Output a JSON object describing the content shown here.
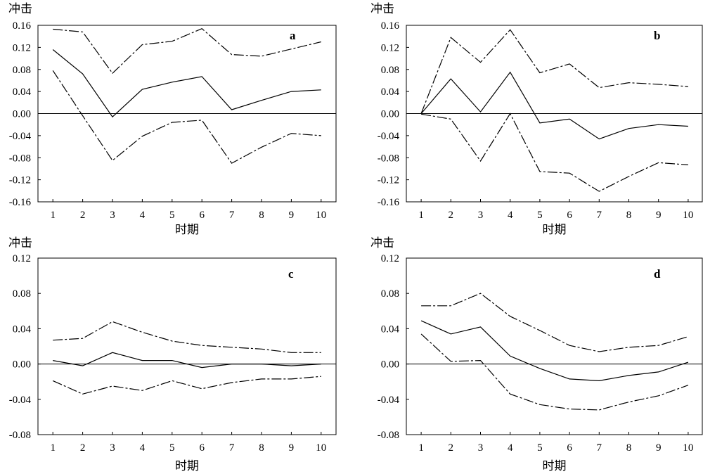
{
  "chart_data": [
    {
      "type": "line",
      "label": "a",
      "ylabel": "冲击",
      "xlabel": "时期",
      "x": [
        1,
        2,
        3,
        4,
        5,
        6,
        7,
        8,
        9,
        10
      ],
      "ylim": [
        -0.16,
        0.16
      ],
      "yticks": [
        "0.16",
        "0.12",
        "0.08",
        "0.04",
        "0.00",
        "-0.04",
        "-0.08",
        "-0.12",
        "-0.16"
      ],
      "grid": false,
      "series": [
        {
          "style": "solid",
          "values": [
            0.116,
            0.072,
            -0.006,
            0.044,
            0.057,
            0.067,
            0.007,
            0.024,
            0.04,
            0.043
          ]
        },
        {
          "style": "dash-dot-upper",
          "values": [
            0.153,
            0.148,
            0.073,
            0.125,
            0.131,
            0.154,
            0.107,
            0.104,
            0.117,
            0.13
          ]
        },
        {
          "style": "dash-dot-lower",
          "values": [
            0.078,
            -0.004,
            -0.085,
            -0.041,
            -0.016,
            -0.012,
            -0.09,
            -0.061,
            -0.036,
            -0.04
          ]
        }
      ]
    },
    {
      "type": "line",
      "label": "b",
      "ylabel": "冲击",
      "xlabel": "时期",
      "x": [
        1,
        2,
        3,
        4,
        5,
        6,
        7,
        8,
        9,
        10
      ],
      "ylim": [
        -0.16,
        0.16
      ],
      "yticks": [
        "0.16",
        "0.12",
        "0.08",
        "0.04",
        "0.00",
        "-0.04",
        "-0.08",
        "-0.12",
        "-0.16"
      ],
      "grid": false,
      "series": [
        {
          "style": "solid",
          "values": [
            0.0,
            0.063,
            0.003,
            0.075,
            -0.017,
            -0.01,
            -0.046,
            -0.027,
            -0.02,
            -0.023
          ]
        },
        {
          "style": "dash-dot-upper",
          "values": [
            0.0,
            0.138,
            0.093,
            0.152,
            0.074,
            0.09,
            0.047,
            0.056,
            0.053,
            0.049
          ]
        },
        {
          "style": "dash-dot-lower",
          "values": [
            -0.001,
            -0.01,
            -0.086,
            0.0,
            -0.105,
            -0.108,
            -0.141,
            -0.114,
            -0.089,
            -0.093
          ]
        }
      ]
    },
    {
      "type": "line",
      "label": "c",
      "ylabel": "冲击",
      "xlabel": "时期",
      "x": [
        1,
        2,
        3,
        4,
        5,
        6,
        7,
        8,
        9,
        10
      ],
      "ylim": [
        -0.08,
        0.12
      ],
      "yticks": [
        "0.12",
        "0.08",
        "0.04",
        "0.00",
        "-0.04",
        "-0.08"
      ],
      "grid": false,
      "series": [
        {
          "style": "solid",
          "values": [
            0.004,
            -0.002,
            0.013,
            0.004,
            0.004,
            -0.004,
            0.0,
            0.0,
            -0.002,
            0.0
          ]
        },
        {
          "style": "dash-dot-upper",
          "values": [
            0.027,
            0.029,
            0.048,
            0.036,
            0.026,
            0.021,
            0.019,
            0.017,
            0.013,
            0.013
          ]
        },
        {
          "style": "dash-dot-lower",
          "values": [
            -0.019,
            -0.034,
            -0.025,
            -0.03,
            -0.019,
            -0.028,
            -0.021,
            -0.017,
            -0.017,
            -0.014
          ]
        }
      ]
    },
    {
      "type": "line",
      "label": "d",
      "ylabel": "冲击",
      "xlabel": "时期",
      "x": [
        1,
        2,
        3,
        4,
        5,
        6,
        7,
        8,
        9,
        10
      ],
      "ylim": [
        -0.08,
        0.12
      ],
      "yticks": [
        "0.12",
        "0.08",
        "0.04",
        "0.00",
        "-0.04",
        "-0.08"
      ],
      "grid": false,
      "series": [
        {
          "style": "solid",
          "values": [
            0.049,
            0.034,
            0.042,
            0.009,
            -0.005,
            -0.017,
            -0.019,
            -0.013,
            -0.009,
            0.002
          ]
        },
        {
          "style": "dash-dot-upper",
          "values": [
            0.066,
            0.066,
            0.08,
            0.054,
            0.038,
            0.021,
            0.014,
            0.019,
            0.021,
            0.031
          ]
        },
        {
          "style": "dash-dot-lower",
          "values": [
            0.034,
            0.003,
            0.004,
            -0.034,
            -0.046,
            -0.051,
            -0.052,
            -0.043,
            -0.036,
            -0.024
          ]
        }
      ]
    }
  ]
}
